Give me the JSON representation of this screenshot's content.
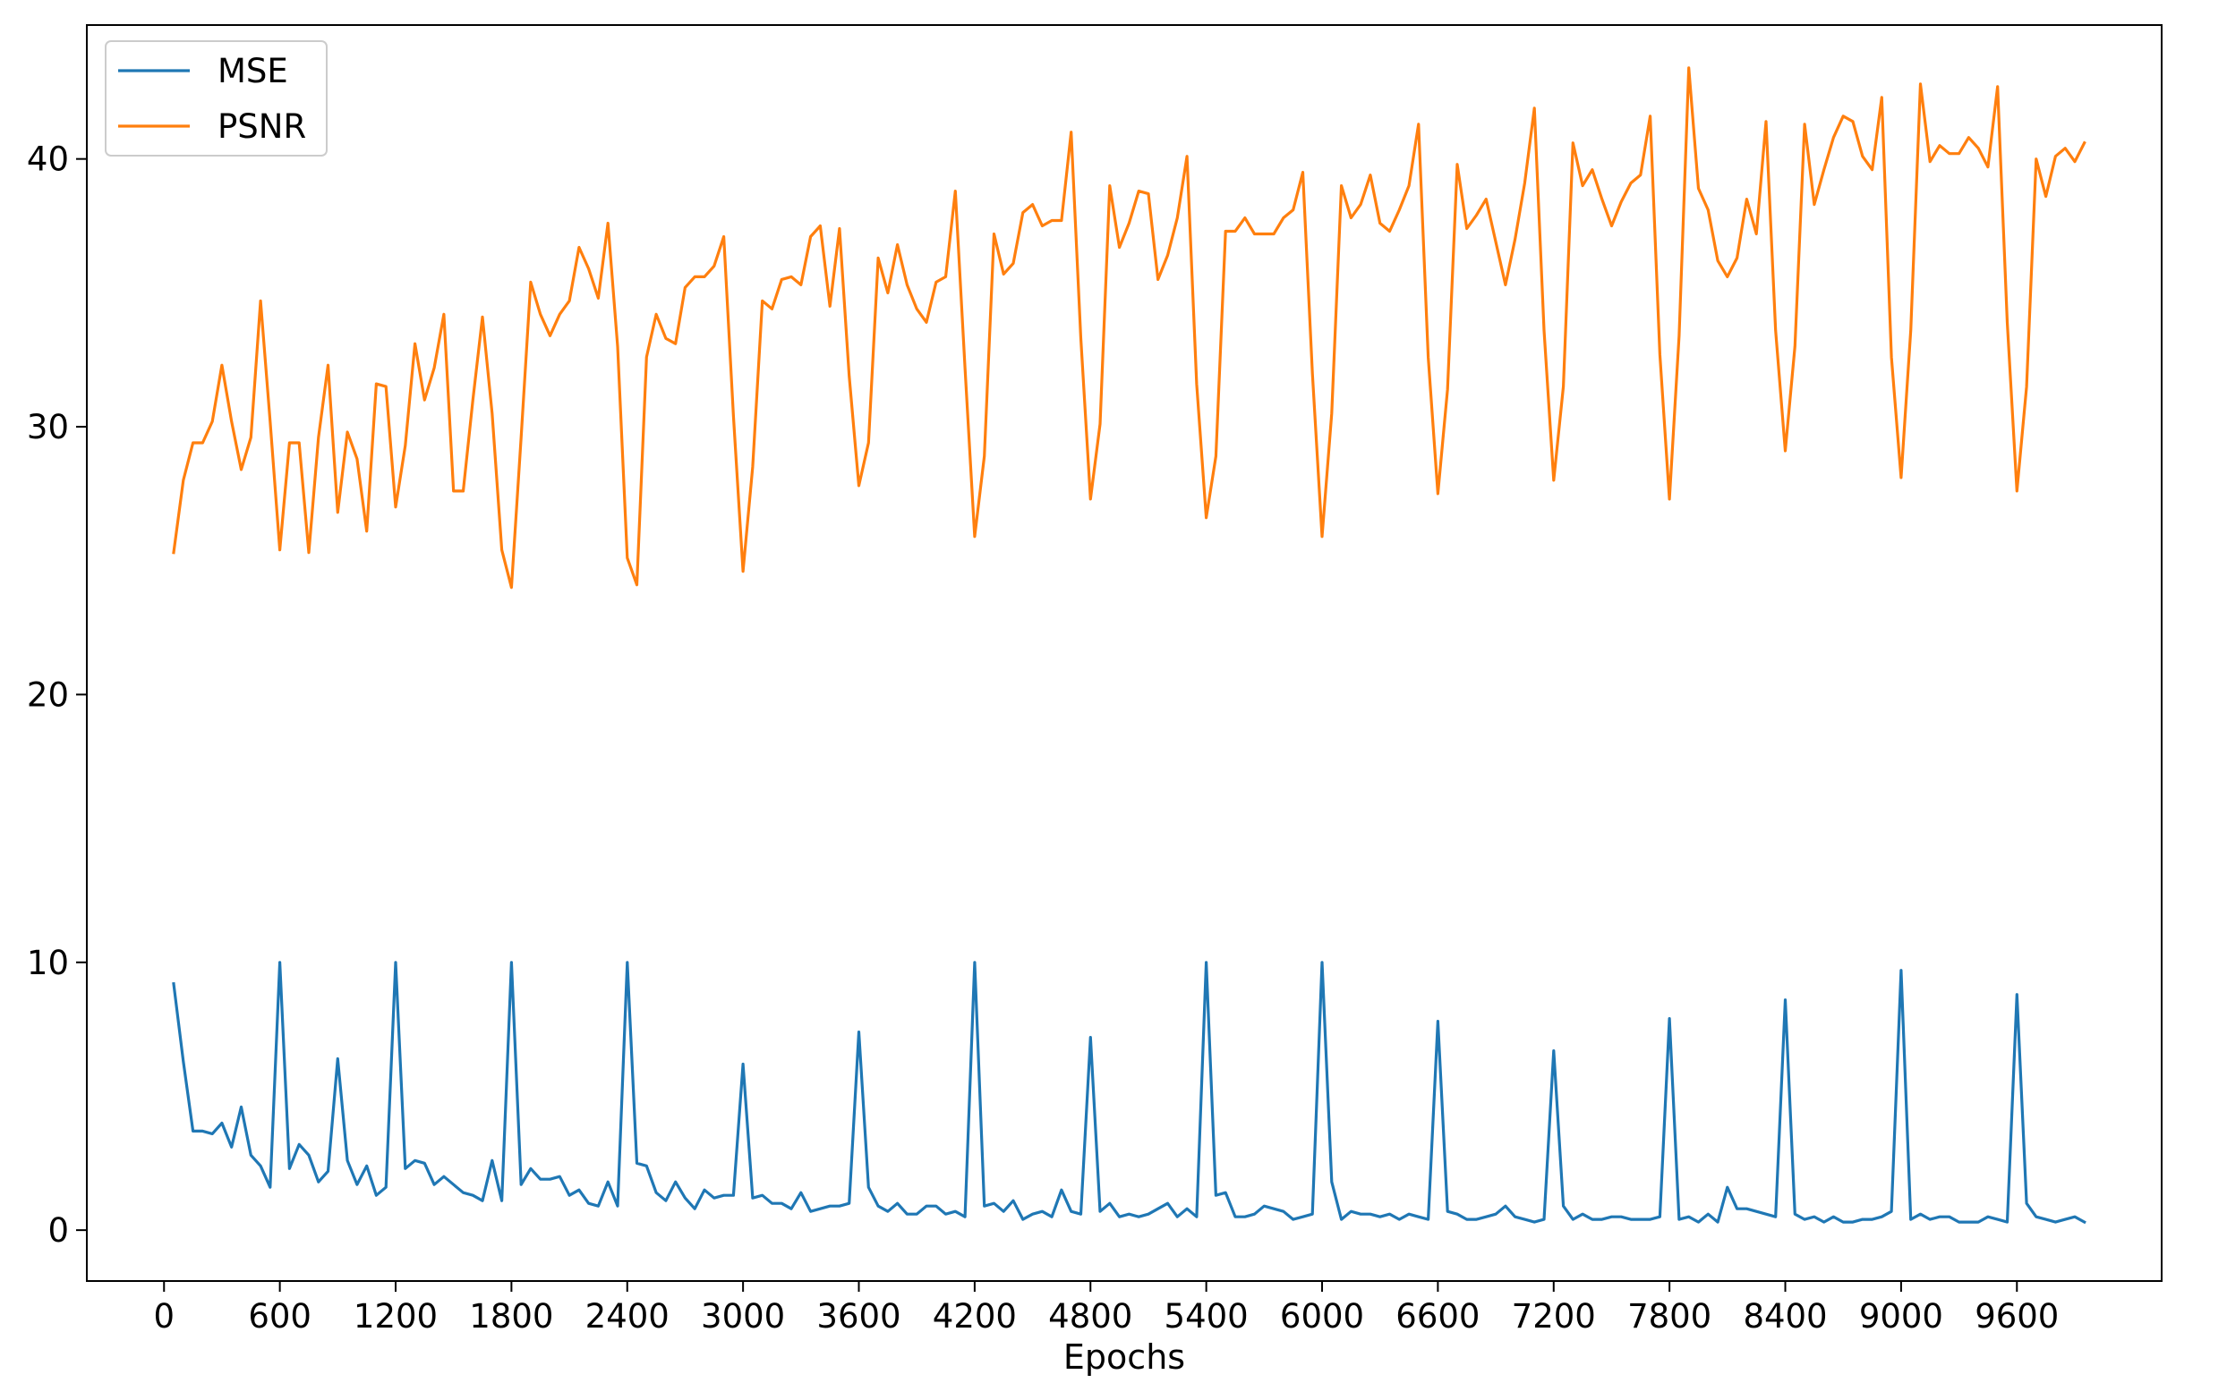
{
  "chart_data": {
    "type": "line",
    "xlabel": "Epochs",
    "ylabel": "",
    "xlim": [
      -400,
      10350
    ],
    "ylim": [
      -1.9,
      45
    ],
    "xticks": [
      0,
      600,
      1200,
      1800,
      2400,
      3000,
      3600,
      4200,
      4800,
      5400,
      6000,
      6600,
      7200,
      7800,
      8400,
      9000,
      9600
    ],
    "yticks": [
      0,
      10,
      20,
      30,
      40
    ],
    "grid": false,
    "legend": {
      "placement": "top-left"
    },
    "x": [
      50,
      100,
      150,
      200,
      250,
      300,
      350,
      400,
      450,
      500,
      550,
      600,
      650,
      700,
      750,
      800,
      850,
      900,
      950,
      1000,
      1050,
      1100,
      1150,
      1200,
      1250,
      1300,
      1350,
      1400,
      1450,
      1500,
      1550,
      1600,
      1650,
      1700,
      1750,
      1800,
      1850,
      1900,
      1950,
      2000,
      2050,
      2100,
      2150,
      2200,
      2250,
      2300,
      2350,
      2400,
      2450,
      2500,
      2550,
      2600,
      2650,
      2700,
      2750,
      2800,
      2850,
      2900,
      2950,
      3000,
      3050,
      3100,
      3150,
      3200,
      3250,
      3300,
      3350,
      3400,
      3450,
      3500,
      3550,
      3600,
      3650,
      3700,
      3750,
      3800,
      3850,
      3900,
      3950,
      4000,
      4050,
      4100,
      4150,
      4200,
      4250,
      4300,
      4350,
      4400,
      4450,
      4500,
      4550,
      4600,
      4650,
      4700,
      4750,
      4800,
      4850,
      4900,
      4950,
      5000,
      5050,
      5100,
      5150,
      5200,
      5250,
      5300,
      5350,
      5400,
      5450,
      5500,
      5550,
      5600,
      5650,
      5700,
      5750,
      5800,
      5850,
      5900,
      5950,
      6000,
      6050,
      6100,
      6150,
      6200,
      6250,
      6300,
      6350,
      6400,
      6450,
      6500,
      6550,
      6600,
      6650,
      6700,
      6750,
      6800,
      6850,
      6900,
      6950,
      7000,
      7050,
      7100,
      7150,
      7200,
      7250,
      7300,
      7350,
      7400,
      7450,
      7500,
      7550,
      7600,
      7650,
      7700,
      7750,
      7800,
      7850,
      7900,
      7950,
      8000,
      8050,
      8100,
      8150,
      8200,
      8250,
      8300,
      8350,
      8400,
      8450,
      8500,
      8550,
      8600,
      8650,
      8700,
      8750,
      8800,
      8850,
      8900,
      8950,
      9000,
      9050,
      9100,
      9150,
      9200,
      9250,
      9300,
      9350,
      9400,
      9450,
      9500,
      9550,
      9600,
      9650,
      9700,
      9750,
      9800,
      9850,
      9900,
      9950
    ],
    "series": [
      {
        "name": "MSE",
        "color": "#1f77b4",
        "values": [
          9.2,
          6.3,
          3.7,
          3.7,
          3.6,
          4.0,
          3.1,
          4.6,
          2.8,
          2.4,
          1.6,
          10.0,
          2.3,
          3.2,
          2.8,
          1.8,
          2.2,
          6.4,
          2.6,
          1.7,
          2.4,
          1.3,
          1.6,
          10.0,
          2.3,
          2.6,
          2.5,
          1.7,
          2.0,
          1.7,
          1.4,
          1.3,
          1.1,
          2.6,
          1.1,
          10.0,
          1.7,
          2.3,
          1.9,
          1.9,
          2.0,
          1.3,
          1.5,
          1.0,
          0.9,
          1.8,
          0.9,
          10.0,
          2.5,
          2.4,
          1.4,
          1.1,
          1.8,
          1.2,
          0.8,
          1.5,
          1.2,
          1.3,
          1.3,
          6.2,
          1.2,
          1.3,
          1.0,
          1.0,
          0.8,
          1.4,
          0.7,
          0.8,
          0.9,
          0.9,
          1.0,
          7.4,
          1.6,
          0.9,
          0.7,
          1.0,
          0.6,
          0.6,
          0.9,
          0.9,
          0.6,
          0.7,
          0.5,
          10.0,
          0.9,
          1.0,
          0.7,
          1.1,
          0.4,
          0.6,
          0.7,
          0.5,
          1.5,
          0.7,
          0.6,
          7.2,
          0.7,
          1.0,
          0.5,
          0.6,
          0.5,
          0.6,
          0.8,
          1.0,
          0.5,
          0.8,
          0.5,
          10.0,
          1.3,
          1.4,
          0.5,
          0.5,
          0.6,
          0.9,
          0.8,
          0.7,
          0.4,
          0.5,
          0.6,
          10.0,
          1.8,
          0.4,
          0.7,
          0.6,
          0.6,
          0.5,
          0.6,
          0.4,
          0.6,
          0.5,
          0.4,
          7.8,
          0.7,
          0.6,
          0.4,
          0.4,
          0.5,
          0.6,
          0.9,
          0.5,
          0.4,
          0.3,
          0.4,
          6.7,
          0.9,
          0.4,
          0.6,
          0.4,
          0.4,
          0.5,
          0.5,
          0.4,
          0.4,
          0.4,
          0.5,
          7.9,
          0.4,
          0.5,
          0.3,
          0.6,
          0.3,
          1.6,
          0.8,
          0.8,
          0.7,
          0.6,
          0.5,
          8.6,
          0.6,
          0.4,
          0.5,
          0.3,
          0.5,
          0.3,
          0.3,
          0.4,
          0.4,
          0.5,
          0.7,
          9.7,
          0.4,
          0.6,
          0.4,
          0.5,
          0.5,
          0.3,
          0.3,
          0.3,
          0.5,
          0.4,
          0.3,
          8.8,
          1.0,
          0.5,
          0.4,
          0.3,
          0.4,
          0.5,
          0.3
        ]
      },
      {
        "name": "PSNR",
        "color": "#ff7f0e",
        "values": [
          25.3,
          28.0,
          29.4,
          29.4,
          30.2,
          32.3,
          30.2,
          28.4,
          29.6,
          34.7,
          30.2,
          25.4,
          29.4,
          29.4,
          25.3,
          29.6,
          32.3,
          26.8,
          29.8,
          28.8,
          26.1,
          31.6,
          31.5,
          27.0,
          29.3,
          33.1,
          31.0,
          32.2,
          34.2,
          27.6,
          27.6,
          31.0,
          34.1,
          30.5,
          25.4,
          24.0,
          29.6,
          35.4,
          34.2,
          33.4,
          34.2,
          34.7,
          36.7,
          35.9,
          34.8,
          37.6,
          33.0,
          25.1,
          24.1,
          32.6,
          34.2,
          33.3,
          33.1,
          35.2,
          35.6,
          35.6,
          36.0,
          37.1,
          30.4,
          24.6,
          28.5,
          34.7,
          34.4,
          35.5,
          35.6,
          35.3,
          37.1,
          37.5,
          34.5,
          37.4,
          31.9,
          27.8,
          29.4,
          36.3,
          35.0,
          36.8,
          35.3,
          34.4,
          33.9,
          35.4,
          35.6,
          38.8,
          32.2,
          25.9,
          28.9,
          37.2,
          35.7,
          36.1,
          38.0,
          38.3,
          37.5,
          37.7,
          37.7,
          41.0,
          33.3,
          27.3,
          30.1,
          39.0,
          36.7,
          37.6,
          38.8,
          38.7,
          35.5,
          36.4,
          37.8,
          40.1,
          31.6,
          26.6,
          28.9,
          37.3,
          37.3,
          37.8,
          37.2,
          37.2,
          37.2,
          37.8,
          38.1,
          39.5,
          32.0,
          25.9,
          30.5,
          39.0,
          37.8,
          38.3,
          39.4,
          37.6,
          37.3,
          38.1,
          39.0,
          41.3,
          32.6,
          27.5,
          31.4,
          39.8,
          37.4,
          37.9,
          38.5,
          36.9,
          35.3,
          37.0,
          39.1,
          41.9,
          33.6,
          28.0,
          31.5,
          40.6,
          39.0,
          39.6,
          38.5,
          37.5,
          38.4,
          39.1,
          39.4,
          41.6,
          32.7,
          27.3,
          33.4,
          43.4,
          38.9,
          38.1,
          36.2,
          35.6,
          36.3,
          38.5,
          37.2,
          41.4,
          33.6,
          29.1,
          33.0,
          41.3,
          38.3,
          39.6,
          40.8,
          41.6,
          41.4,
          40.1,
          39.6,
          42.3,
          32.6,
          28.1,
          33.6,
          42.8,
          39.9,
          40.5,
          40.2,
          40.2,
          40.8,
          40.4,
          39.7,
          42.7,
          33.9,
          27.6,
          31.5,
          40.0,
          38.6,
          40.1,
          40.4,
          39.9,
          40.6
        ]
      }
    ]
  }
}
